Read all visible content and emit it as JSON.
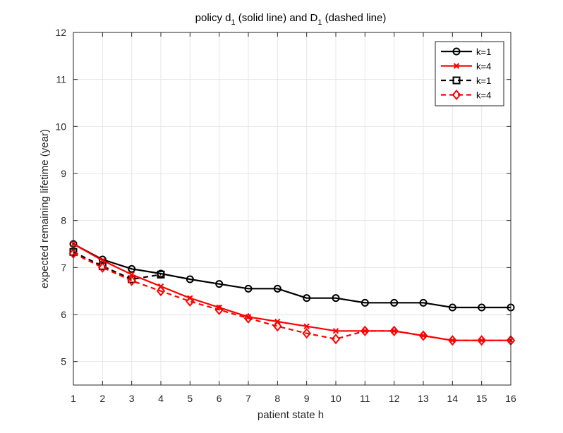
{
  "chart_data": {
    "type": "line",
    "title": {
      "part1": "policy d",
      "sub1": "1",
      "part2": " (solid line) and D",
      "sub2": "1",
      "part3": " (dashed line)"
    },
    "xlabel": "patient state h",
    "ylabel": "expected remaining lifetime (year)",
    "xlim": [
      1,
      16
    ],
    "ylim": [
      4.5,
      12
    ],
    "xticks": [
      "1",
      "2",
      "3",
      "4",
      "5",
      "6",
      "7",
      "8",
      "9",
      "10",
      "11",
      "12",
      "13",
      "14",
      "15",
      "16"
    ],
    "yticks": [
      "5",
      "6",
      "7",
      "8",
      "9",
      "10",
      "11",
      "12"
    ],
    "grid": true,
    "legend_position": "top-right",
    "x": [
      1,
      2,
      3,
      4,
      5,
      6,
      7,
      8,
      9,
      10,
      11,
      12,
      13,
      14,
      15,
      16
    ],
    "series": [
      {
        "name": "k=1",
        "color": "#000000",
        "line": "solid",
        "marker": "circle",
        "values": [
          7.5,
          7.17,
          6.97,
          6.87,
          6.75,
          6.65,
          6.55,
          6.55,
          6.35,
          6.35,
          6.25,
          6.25,
          6.25,
          6.15,
          6.15,
          6.15
        ]
      },
      {
        "name": "k=4",
        "color": "#ff0000",
        "line": "solid",
        "marker": "x",
        "values": [
          7.5,
          7.15,
          6.85,
          6.6,
          6.35,
          6.15,
          5.95,
          5.85,
          5.75,
          5.65,
          5.65,
          5.65,
          5.55,
          5.45,
          5.45,
          5.45
        ]
      },
      {
        "name": "k=1",
        "color": "#000000",
        "line": "dashed",
        "marker": "square",
        "values": [
          7.33,
          7.03,
          6.75,
          6.85,
          null,
          null,
          null,
          null,
          null,
          null,
          null,
          null,
          null,
          null,
          null,
          null
        ]
      },
      {
        "name": "k=4",
        "color": "#ff0000",
        "line": "dashed",
        "marker": "diamond",
        "values": [
          7.3,
          7.0,
          6.72,
          6.5,
          6.28,
          6.1,
          5.92,
          5.75,
          5.6,
          5.48,
          5.65,
          5.65,
          5.55,
          5.45,
          5.45,
          5.45
        ]
      }
    ]
  }
}
